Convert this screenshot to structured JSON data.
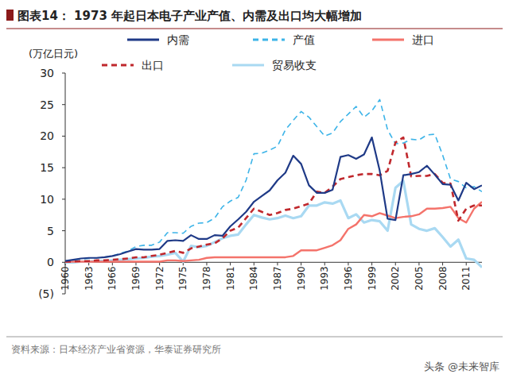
{
  "chart_data": {
    "type": "line",
    "title": "图表14： 1973 年起日本电子产业产值、内需及出口均大幅增加",
    "y_label": "(万亿日元)",
    "source": "资料来源：日本经济产业省资源，华泰证券研究所",
    "watermark": "头条 @未来智库",
    "x": [
      1960,
      1961,
      1962,
      1963,
      1964,
      1965,
      1966,
      1967,
      1968,
      1969,
      1970,
      1971,
      1972,
      1973,
      1974,
      1975,
      1976,
      1977,
      1978,
      1979,
      1980,
      1981,
      1982,
      1983,
      1984,
      1985,
      1986,
      1987,
      1988,
      1989,
      1990,
      1991,
      1992,
      1993,
      1994,
      1995,
      1996,
      1997,
      1998,
      1999,
      2000,
      2001,
      2002,
      2003,
      2004,
      2005,
      2006,
      2007,
      2008,
      2009,
      2010,
      2011,
      2012,
      2013
    ],
    "xlim": [
      1960,
      2013
    ],
    "xticks": [
      1960,
      1963,
      1966,
      1969,
      1972,
      1975,
      1978,
      1981,
      1984,
      1987,
      1990,
      1993,
      1996,
      1999,
      2002,
      2005,
      2008,
      2011
    ],
    "ylim": [
      -5,
      30
    ],
    "yticks": [
      {
        "value": -5,
        "label": "(5)"
      },
      0,
      5,
      10,
      15,
      20,
      25,
      30
    ],
    "grid": false,
    "legend": "top",
    "series": [
      {
        "name": "内需",
        "color": "#1f3a87",
        "line_style": "solid",
        "values": [
          0.2,
          0.4,
          0.6,
          0.7,
          0.7,
          0.8,
          1.0,
          1.3,
          1.7,
          2.1,
          2.0,
          2.0,
          2.1,
          3.4,
          3.5,
          3.4,
          4.3,
          3.7,
          3.7,
          4.3,
          4.2,
          5.7,
          6.8,
          8.0,
          9.6,
          10.5,
          11.4,
          13.0,
          14.2,
          16.9,
          15.6,
          12.2,
          11.0,
          11.0,
          11.5,
          16.7,
          17.0,
          16.4,
          17.1,
          19.8,
          14.5,
          6.9,
          6.7,
          13.8,
          14.0,
          14.3,
          15.3,
          13.9,
          12.4,
          12.3,
          9.8,
          12.6,
          11.6,
          12.2
        ]
      },
      {
        "name": "产值",
        "color": "#3db4e8",
        "line_style": "dashed",
        "values": [
          0.2,
          0.3,
          0.5,
          0.6,
          0.7,
          0.8,
          1.0,
          1.4,
          1.8,
          2.5,
          2.7,
          2.7,
          3.2,
          4.7,
          4.7,
          4.6,
          5.7,
          6.2,
          6.3,
          7.0,
          8.8,
          9.7,
          10.3,
          13.0,
          17.2,
          17.3,
          17.8,
          18.4,
          21.0,
          22.5,
          23.9,
          23.0,
          21.5,
          20.0,
          20.5,
          22.3,
          23.5,
          24.7,
          23.0,
          24.0,
          25.8,
          21.0,
          18.8,
          18.9,
          19.5,
          19.4,
          20.2,
          20.3,
          17.0,
          13.2,
          12.8,
          11.8,
          12.0,
          11.2
        ]
      },
      {
        "name": "进口",
        "color": "#f4736b",
        "line_style": "solid",
        "values": [
          0.1,
          0.1,
          0.1,
          0.1,
          0.1,
          0.1,
          0.1,
          0.1,
          0.1,
          0.1,
          0.1,
          0.1,
          0.1,
          0.3,
          0.3,
          0.2,
          0.3,
          0.4,
          0.7,
          0.8,
          0.8,
          0.8,
          0.8,
          0.8,
          0.8,
          0.8,
          0.8,
          0.8,
          0.8,
          1.0,
          1.9,
          1.9,
          1.9,
          2.3,
          2.7,
          3.5,
          5.3,
          6.0,
          7.5,
          7.3,
          7.8,
          7.4,
          7.0,
          7.2,
          7.3,
          7.6,
          8.5,
          8.5,
          8.6,
          8.8,
          7.0,
          6.3,
          8.5,
          9.6
        ]
      },
      {
        "name": "出口",
        "color": "#c0282d",
        "line_style": "dashed",
        "values": [
          0.1,
          0.1,
          0.2,
          0.2,
          0.3,
          0.3,
          0.4,
          0.5,
          0.6,
          0.8,
          0.8,
          1.0,
          1.2,
          1.5,
          1.8,
          1.5,
          2.2,
          2.5,
          2.8,
          3.0,
          3.8,
          5.0,
          5.5,
          7.0,
          8.5,
          8.0,
          7.5,
          7.8,
          8.3,
          8.5,
          8.9,
          9.3,
          11.2,
          11.0,
          12.0,
          13.2,
          13.5,
          13.8,
          14.0,
          14.0,
          13.8,
          14.5,
          19.0,
          19.8,
          13.6,
          13.7,
          13.7,
          14.0,
          12.6,
          12.5,
          6.6,
          8.5,
          9.0,
          9.0
        ]
      },
      {
        "name": "贸易收支",
        "color": "#a9d9f2",
        "line_style": "solid",
        "values": [
          0.0,
          0.0,
          0.1,
          0.1,
          0.2,
          0.2,
          0.3,
          0.4,
          0.5,
          0.6,
          0.7,
          0.9,
          1.0,
          1.2,
          1.5,
          0.1,
          2.6,
          2.4,
          2.6,
          3.2,
          3.8,
          4.2,
          4.4,
          6.0,
          7.5,
          7.1,
          6.8,
          7.0,
          7.4,
          7.0,
          7.3,
          9.0,
          9.0,
          9.5,
          9.3,
          9.8,
          7.0,
          7.6,
          6.3,
          6.7,
          6.5,
          5.0,
          11.8,
          12.9,
          6.0,
          5.3,
          5.0,
          5.4,
          4.0,
          2.5,
          3.6,
          0.6,
          0.4,
          -0.8
        ]
      }
    ]
  }
}
